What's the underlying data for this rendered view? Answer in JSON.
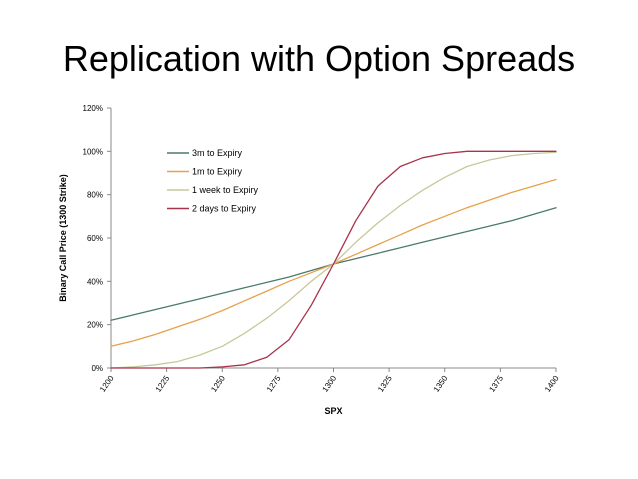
{
  "slide": {
    "title": "Replication with Option Spreads"
  },
  "chart_data": {
    "type": "line",
    "xlabel": "SPX",
    "ylabel": "Binary Call Price (1300 Strike)",
    "xlim": [
      1200,
      1400
    ],
    "ylim": [
      0,
      120
    ],
    "x_ticks": [
      1200,
      1225,
      1250,
      1275,
      1300,
      1325,
      1350,
      1375,
      1400
    ],
    "x_tick_labels": [
      "1200",
      "1225",
      "1250",
      "1275",
      "1300",
      "1325",
      "1350",
      "1375",
      "1400"
    ],
    "y_ticks": [
      0,
      20,
      40,
      60,
      80,
      100,
      120
    ],
    "y_tick_labels": [
      "0%",
      "20%",
      "40%",
      "60%",
      "80%",
      "100%",
      "120%"
    ],
    "grid": false,
    "legend_position": "top-left",
    "x": [
      1200,
      1210,
      1220,
      1230,
      1240,
      1250,
      1260,
      1270,
      1280,
      1290,
      1300,
      1310,
      1320,
      1330,
      1340,
      1350,
      1360,
      1370,
      1380,
      1390,
      1400
    ],
    "series": [
      {
        "name": "3m to Expiry",
        "color": "#4a7a6e",
        "values": [
          22,
          24.5,
          27,
          29.5,
          32,
          34.5,
          37,
          39.5,
          42,
          45,
          48,
          50.5,
          53,
          55.5,
          58,
          60.5,
          63,
          65.5,
          68,
          71,
          74
        ]
      },
      {
        "name": "1m to Expiry",
        "color": "#e8a04a",
        "values": [
          10,
          12.5,
          15.5,
          19,
          22.5,
          26.5,
          31,
          35.5,
          40,
          44,
          48,
          52.5,
          57,
          61.5,
          66,
          70,
          74,
          77.5,
          81,
          84,
          87
        ]
      },
      {
        "name": "1 week to Expiry",
        "color": "#c8c89a",
        "values": [
          0,
          0.5,
          1.5,
          3,
          6,
          10,
          16,
          23,
          31,
          40,
          48,
          58,
          67,
          75,
          82,
          88,
          93,
          96,
          98,
          99,
          99.5
        ]
      },
      {
        "name": "2 days to Expiry",
        "color": "#a8324a",
        "values": [
          0,
          0,
          0,
          0,
          0,
          0.5,
          1.5,
          5,
          13,
          29,
          48,
          68,
          84,
          93,
          97,
          99,
          100,
          100,
          100,
          100,
          100
        ]
      }
    ]
  }
}
